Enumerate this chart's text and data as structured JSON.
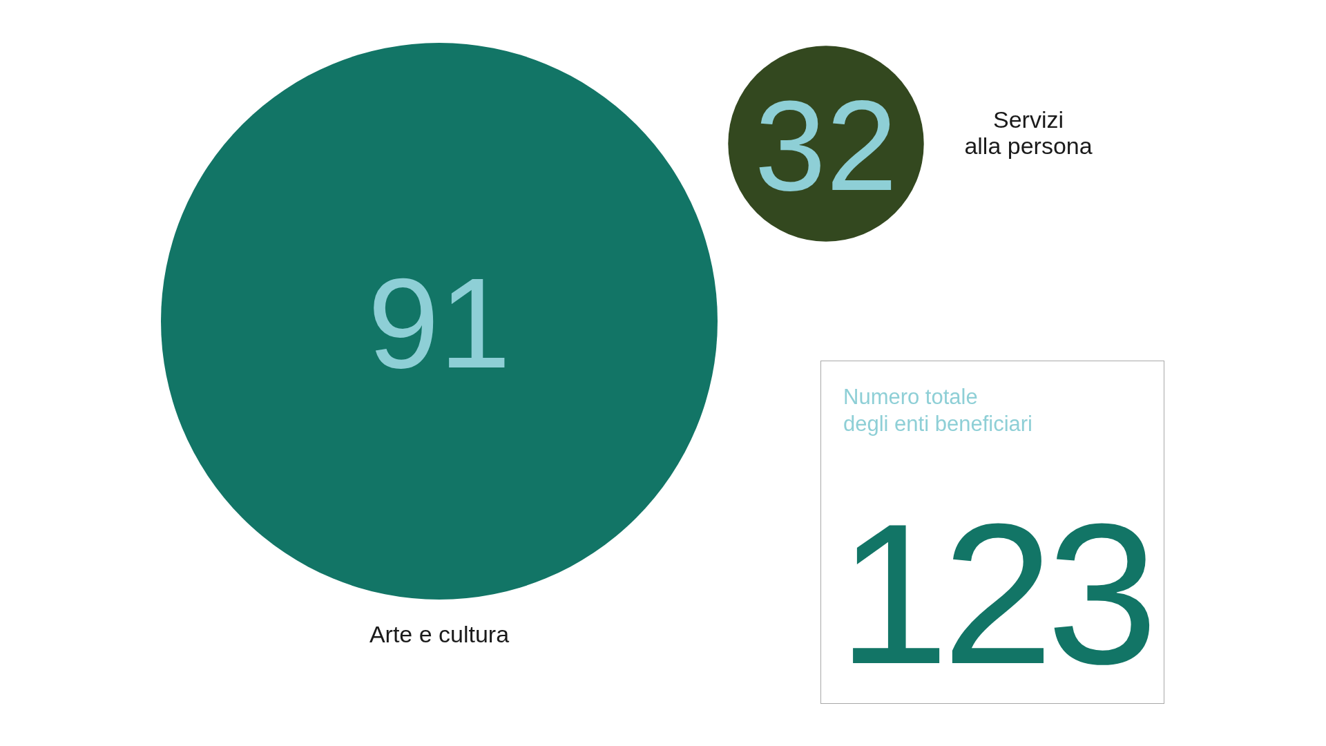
{
  "chart_data": [
    {
      "type": "other",
      "categories": [
        "Arte e cultura",
        "Servizi\nalla persona"
      ],
      "values": [
        91,
        32
      ],
      "colors": [
        "#127566",
        "#33481f"
      ],
      "data_labels": true
    },
    {
      "type": "other",
      "title": "Numero totale\ndegli enti beneficiari",
      "values": [
        123
      ],
      "color": "#127566",
      "data_labels": true
    }
  ]
}
